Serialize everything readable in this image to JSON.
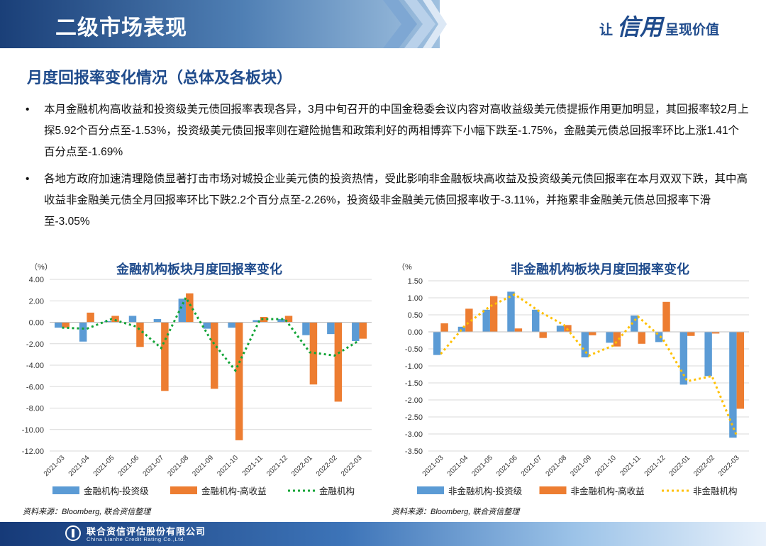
{
  "header": {
    "title": "二级市场表现",
    "slogan_prefix": "让",
    "slogan_mark": "信用",
    "slogan_suffix": "呈现价值"
  },
  "section_title": "月度回报率变化情况（总体及各板块）",
  "bullets": [
    "本月金融机构高收益和投资级美元债回报率表现各异，3月中旬召开的中国金稳委会议内容对高收益级美元债提振作用更加明显，其回报率较2月上探5.92个百分点至-1.53%，投资级美元债回报率则在避险抛售和政策利好的两相博弈下小幅下跌至-1.75%，金融美元债总回报率环比上涨1.41个百分点至-1.69%",
    "各地方政府加速清理隐债显著打击市场对城投企业美元债的投资热情，受此影响非金融板块高收益及投资级美元债回报率在本月双双下跌，其中高收益非金融美元债全月回报率环比下跌2.2个百分点至-2.26%，投资级非金融美元债回报率收于-3.11%，并拖累非金融美元债总回报率下滑至-3.05%"
  ],
  "bullet_marker": "•",
  "colors": {
    "blue": "#5b9bd5",
    "orange": "#ed7d31",
    "green": "#13a538",
    "yellow": "#ffc000",
    "title": "#1f4b8c",
    "grid": "#d9d9d9"
  },
  "chart_data": [
    {
      "type": "bar",
      "title": "金融机构板块月度回报率变化",
      "unit_label": "（%）",
      "categories": [
        "2021-03",
        "2021-04",
        "2021-05",
        "2021-06",
        "2021-07",
        "2021-08",
        "2021-09",
        "2021-10",
        "2021-11",
        "2021-12",
        "2022-01",
        "2022-02",
        "2022-03"
      ],
      "ylim": [
        -12,
        4
      ],
      "ytick_step": 2,
      "ytick_labels": [
        "4.00",
        "2.00",
        "0.00",
        "-2.00",
        "-4.00",
        "-6.00",
        "-8.00",
        "-10.00",
        "-12.00"
      ],
      "grid": true,
      "legend_position": "bottom",
      "series": [
        {
          "name": "金融机构-投资级",
          "kind": "bar",
          "color": "#5b9bd5",
          "values": [
            -0.5,
            -1.8,
            0.1,
            0.6,
            0.3,
            2.2,
            -0.6,
            -0.5,
            0.2,
            0.3,
            -1.2,
            -1.1,
            -1.75
          ]
        },
        {
          "name": "金融机构-高收益",
          "kind": "bar",
          "color": "#ed7d31",
          "values": [
            -0.5,
            0.9,
            0.6,
            -2.3,
            -6.4,
            2.7,
            -6.2,
            -11.0,
            0.5,
            0.6,
            -5.8,
            -7.4,
            -1.53
          ]
        },
        {
          "name": "金融机构",
          "kind": "line",
          "color": "#13a538",
          "values": [
            -0.5,
            -0.6,
            0.3,
            -0.4,
            -2.4,
            2.3,
            -1.6,
            -4.5,
            0.3,
            0.3,
            -2.8,
            -3.1,
            -1.69
          ]
        }
      ]
    },
    {
      "type": "bar",
      "title": "非金融机构板块月度回报率变化",
      "unit_label": "（%",
      "categories": [
        "2021-03",
        "2021-04",
        "2021-05",
        "2021-06",
        "2021-07",
        "2021-08",
        "2021-09",
        "2021-10",
        "2021-11",
        "2021-12",
        "2022-01",
        "2022-02",
        "2022-03"
      ],
      "ylim": [
        -3.5,
        1.5
      ],
      "ytick_step": 0.5,
      "ytick_labels": [
        "1.50",
        "1.00",
        "0.50",
        "0.00",
        "-0.50",
        "-1.00",
        "-1.50",
        "-2.00",
        "-2.50",
        "-3.00",
        "-3.50"
      ],
      "grid": true,
      "legend_position": "bottom",
      "series": [
        {
          "name": "非金融机构-投资级",
          "kind": "bar",
          "color": "#5b9bd5",
          "values": [
            -0.68,
            0.15,
            0.65,
            1.18,
            0.65,
            0.18,
            -0.75,
            -0.32,
            0.48,
            -0.3,
            -1.55,
            -1.3,
            -3.11
          ]
        },
        {
          "name": "非金融机构-高收益",
          "kind": "bar",
          "color": "#ed7d31",
          "values": [
            0.25,
            0.68,
            1.05,
            0.1,
            -0.18,
            0.2,
            -0.1,
            -0.43,
            -0.35,
            0.88,
            -0.12,
            -0.05,
            -2.26
          ]
        },
        {
          "name": "非金融机构",
          "kind": "line",
          "color": "#ffc000",
          "values": [
            -0.65,
            0.2,
            0.75,
            1.1,
            0.6,
            0.2,
            -0.7,
            -0.4,
            0.45,
            -0.2,
            -1.45,
            -1.3,
            -3.05
          ]
        }
      ]
    }
  ],
  "sources": [
    "资料来源：Bloomberg, 联合资信整理",
    "资料来源：Bloomberg, 联合资信整理"
  ],
  "footer": {
    "company_cn": "联合资信评估股份有限公司",
    "company_en": "China Lianhe Credit Rating Co.,Ltd."
  }
}
